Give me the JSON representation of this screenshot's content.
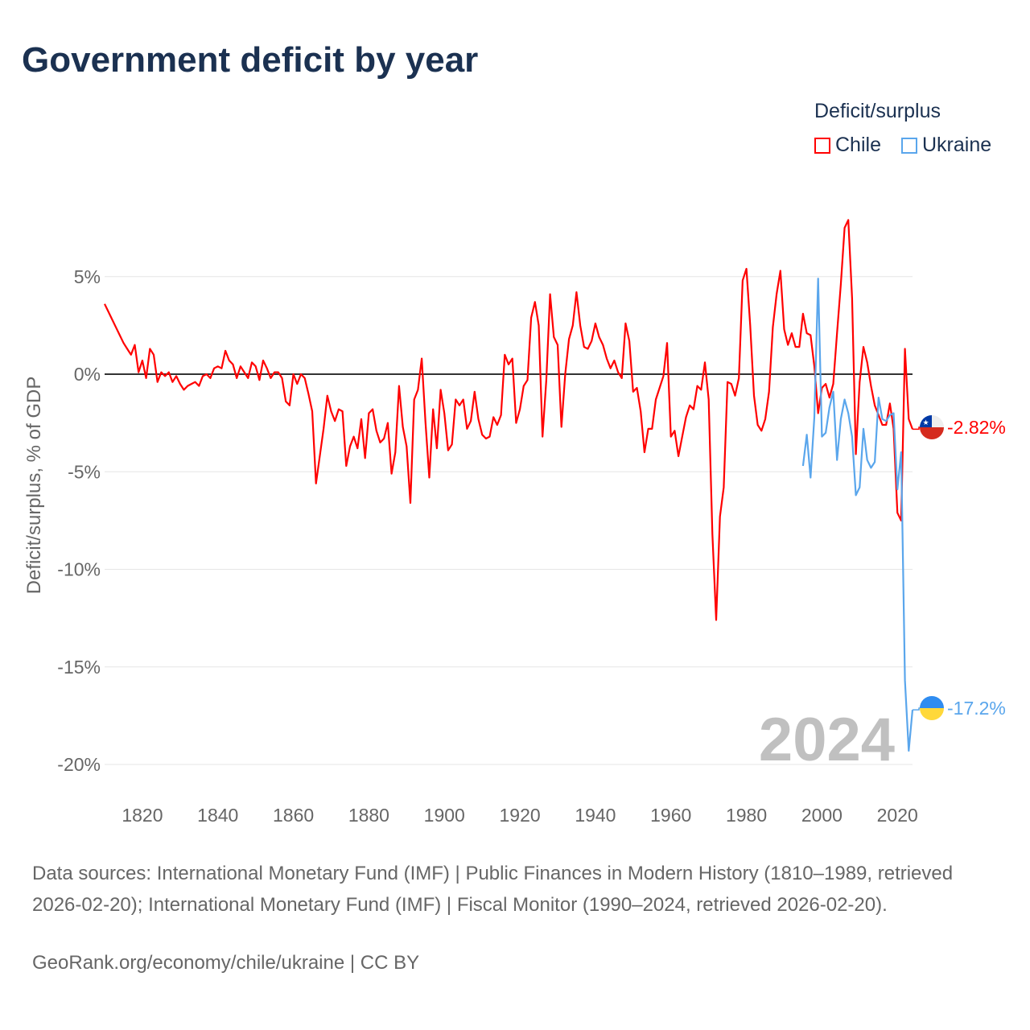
{
  "chart_data": {
    "type": "line",
    "title": "Government deficit by year",
    "ylabel": "Deficit/surplus, % of GDP",
    "xlabel": "",
    "xlim": [
      1810,
      2024
    ],
    "ylim": [
      -20,
      5
    ],
    "x_ticks": [
      1820,
      1840,
      1860,
      1880,
      1900,
      1920,
      1940,
      1960,
      1980,
      2000,
      2020
    ],
    "y_ticks": [
      5,
      0,
      -5,
      -10,
      -15,
      -20
    ],
    "y_tick_labels": [
      "5%",
      "0%",
      "-5%",
      "-10%",
      "-15%",
      "-20%"
    ],
    "grid": true,
    "legend": {
      "title": "Deficit/surplus",
      "placement": "top-right"
    },
    "year_label": "2024",
    "series": [
      {
        "name": "Chile",
        "color": "#ff0000",
        "start_year": 1810,
        "end_label": "-2.82%",
        "values": [
          3.6,
          3.2,
          2.8,
          2.4,
          2.0,
          1.6,
          1.3,
          1.0,
          1.5,
          0.1,
          0.7,
          -0.2,
          1.3,
          1.0,
          -0.4,
          0.1,
          -0.1,
          0.1,
          -0.4,
          -0.1,
          -0.5,
          -0.8,
          -0.6,
          -0.5,
          -0.4,
          -0.6,
          -0.1,
          0.0,
          -0.2,
          0.3,
          0.4,
          0.3,
          1.2,
          0.7,
          0.5,
          -0.2,
          0.4,
          0.1,
          -0.2,
          0.6,
          0.4,
          -0.3,
          0.7,
          0.3,
          -0.2,
          0.1,
          0.1,
          -0.2,
          -1.4,
          -1.6,
          0.0,
          -0.5,
          0.0,
          -0.2,
          -1.0,
          -1.9,
          -5.6,
          -4.2,
          -2.8,
          -1.1,
          -1.9,
          -2.4,
          -1.8,
          -1.9,
          -4.7,
          -3.7,
          -3.2,
          -3.8,
          -2.3,
          -4.3,
          -2.0,
          -1.8,
          -2.9,
          -3.5,
          -3.3,
          -2.5,
          -5.1,
          -4.0,
          -0.6,
          -2.7,
          -3.7,
          -6.6,
          -1.3,
          -0.8,
          0.8,
          -2.5,
          -5.3,
          -1.8,
          -3.8,
          -0.8,
          -2.0,
          -3.9,
          -3.6,
          -1.3,
          -1.6,
          -1.3,
          -2.8,
          -2.4,
          -0.9,
          -2.3,
          -3.1,
          -3.3,
          -3.2,
          -2.2,
          -2.6,
          -2.1,
          1.0,
          0.5,
          0.8,
          -2.5,
          -1.8,
          -0.6,
          -0.3,
          2.9,
          3.7,
          2.5,
          -3.2,
          -0.3,
          4.1,
          1.9,
          1.5,
          -2.7,
          0.0,
          1.8,
          2.5,
          4.2,
          2.5,
          1.4,
          1.3,
          1.7,
          2.6,
          1.9,
          1.5,
          0.8,
          0.3,
          0.7,
          0.1,
          -0.2,
          2.6,
          1.7,
          -0.9,
          -0.7,
          -1.9,
          -4.0,
          -2.8,
          -2.8,
          -1.3,
          -0.7,
          -0.1,
          1.6,
          -3.2,
          -2.9,
          -4.2,
          -3.2,
          -2.2,
          -1.6,
          -1.8,
          -0.6,
          -0.8,
          0.6,
          -1.3,
          -8.2,
          -12.6,
          -7.3,
          -5.8,
          -0.4,
          -0.5,
          -1.1,
          -0.2,
          4.8,
          5.4,
          2.5,
          -1.1,
          -2.6,
          -2.9,
          -2.3,
          -0.9,
          2.4,
          4.1,
          5.3,
          2.3,
          1.5,
          2.1,
          1.4,
          1.4,
          3.1,
          2.1,
          2.0,
          0.4,
          -2.0,
          -0.7,
          -0.5,
          -1.2,
          -0.5,
          2.1,
          4.6,
          7.5,
          7.9,
          3.9,
          -4.1,
          -0.4,
          1.4,
          0.6,
          -0.6,
          -1.6,
          -2.1,
          -2.6,
          -2.6,
          -1.5,
          -2.8,
          -7.1,
          -7.5,
          1.3,
          -2.3,
          -2.82
        ]
      },
      {
        "name": "Ukraine",
        "color": "#5aa6ec",
        "start_year": 1995,
        "end_label": "-17.2%",
        "values": [
          -4.7,
          -3.1,
          -5.3,
          -2.2,
          4.9,
          -3.2,
          -3.0,
          -1.7,
          -0.9,
          -4.4,
          -2.3,
          -1.3,
          -2.0,
          -3.2,
          -6.2,
          -5.8,
          -2.8,
          -4.4,
          -4.8,
          -4.5,
          -1.2,
          -2.3,
          -2.4,
          -2.1,
          -2.0,
          -5.9,
          -4.0,
          -15.7,
          -19.3,
          -17.2
        ]
      }
    ]
  },
  "footer": {
    "sources": "Data sources: International Monetary Fund (IMF) | Public Finances in Modern History (1810–1989, retrieved 2026-02-20); International Monetary Fund (IMF) | Fiscal Monitor (1990–2024, retrieved 2026-02-20).",
    "credit": "GeoRank.org/economy/chile/ukraine | CC BY"
  }
}
